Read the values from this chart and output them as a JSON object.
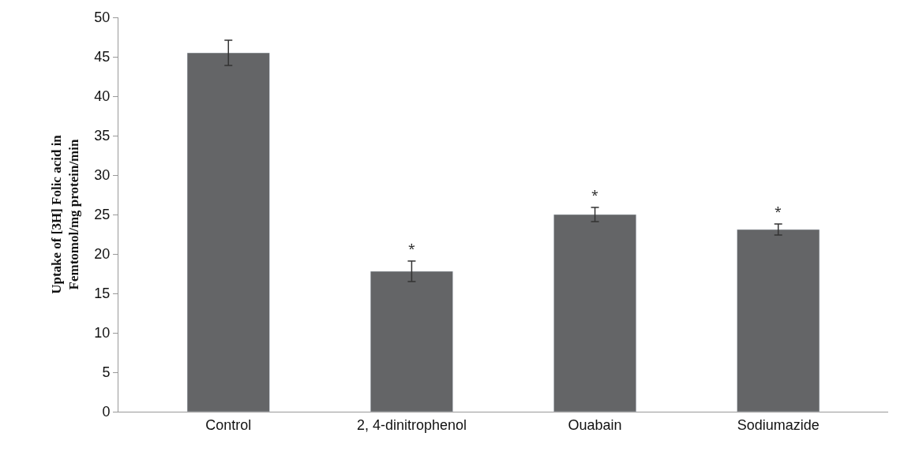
{
  "chart_data": {
    "type": "bar",
    "ylabel": "Uptake of [3H] Folic acid in Femtomol/mg protein/min",
    "categories": [
      "Control",
      "2, 4-dinitrophenol",
      "Ouabain",
      "Sodiumazide"
    ],
    "values": [
      45.5,
      17.8,
      25.0,
      23.1
    ],
    "errors": [
      1.6,
      1.3,
      0.9,
      0.7
    ],
    "color": "#646567",
    "value_labels": [
      null,
      "*",
      "*",
      "*"
    ],
    "ylim": [
      0,
      50
    ],
    "yticks": [
      0,
      5,
      10,
      15,
      20,
      25,
      30,
      35,
      40,
      45,
      50
    ]
  }
}
